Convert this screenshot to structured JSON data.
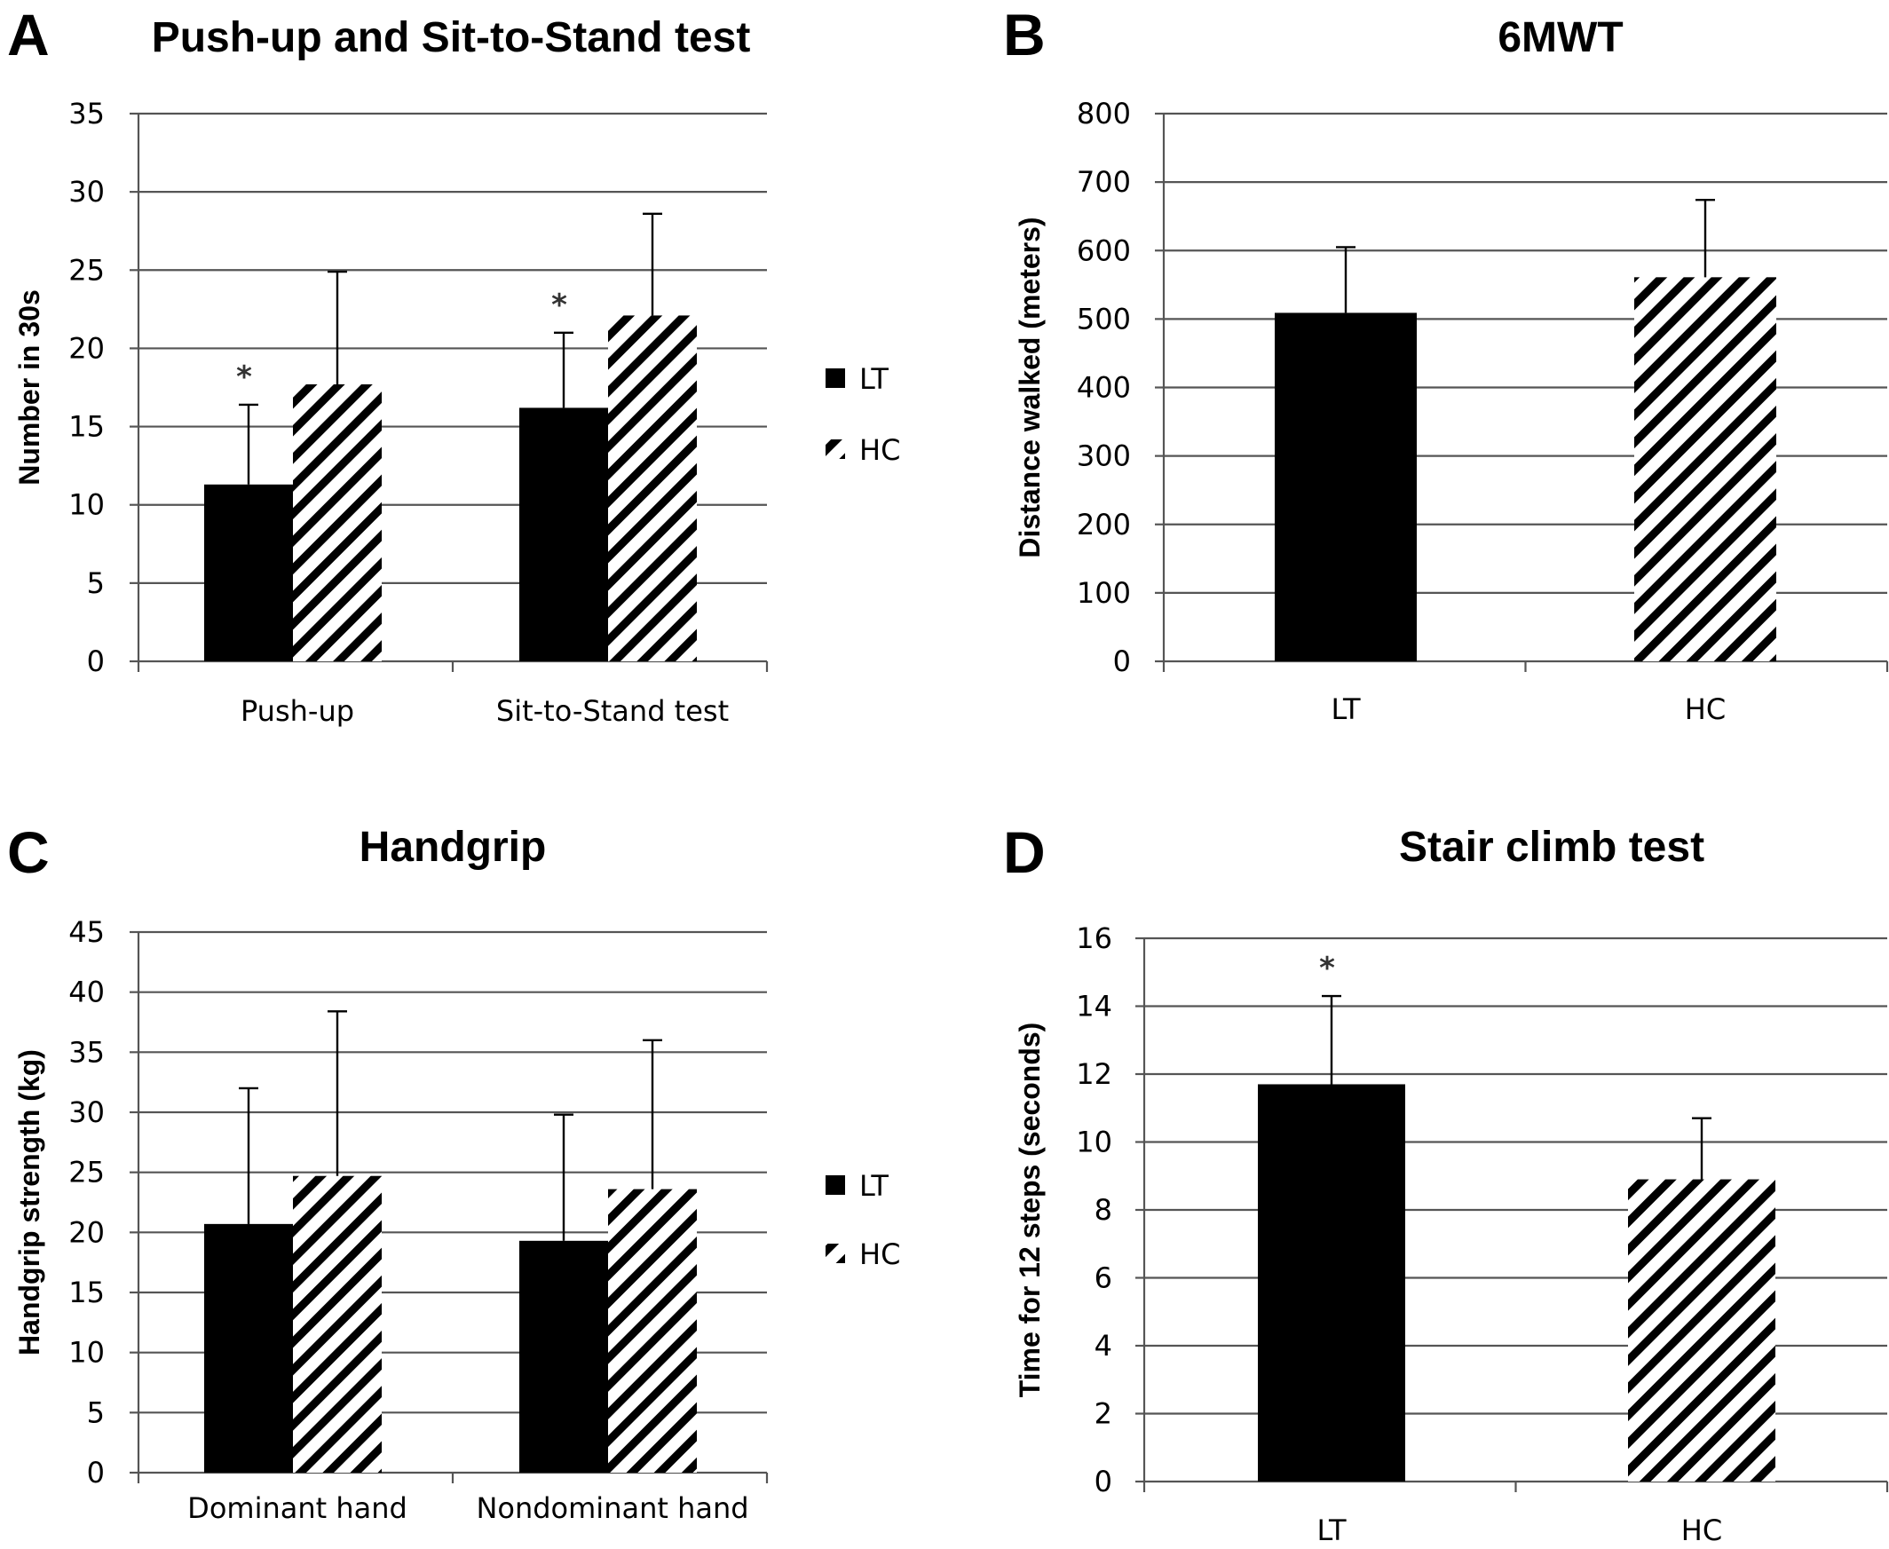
{
  "legend": {
    "lt": "LT",
    "hc": "HC"
  },
  "colors": {
    "lt_fill": "#000000",
    "hc_fill": "hatched black/white",
    "grid": "#555555"
  },
  "chart_data": [
    {
      "panel": "A",
      "type": "bar",
      "title": "Push-up and Sit-to-Stand test",
      "ylabel": "Number in 30s",
      "xlabel": "",
      "ylim": [
        0,
        35
      ],
      "yticks": [
        0,
        5,
        10,
        15,
        20,
        25,
        30,
        35
      ],
      "categories": [
        "Push-up",
        "Sit-to-Stand test"
      ],
      "series": [
        {
          "name": "LT",
          "values": [
            11.3,
            16.2
          ],
          "errors": [
            5.1,
            4.8
          ],
          "significant": [
            "*",
            "*"
          ]
        },
        {
          "name": "HC",
          "values": [
            17.7,
            22.1
          ],
          "errors": [
            7.2,
            6.5
          ],
          "significant": [
            "",
            ""
          ]
        }
      ],
      "legend_position": "right"
    },
    {
      "panel": "B",
      "type": "bar",
      "title": "6MWT",
      "ylabel": "Distance walked (meters)",
      "xlabel": "",
      "ylim": [
        0,
        800
      ],
      "yticks": [
        0,
        100,
        200,
        300,
        400,
        500,
        600,
        700,
        800
      ],
      "categories": [
        "LT",
        "HC"
      ],
      "series": [
        {
          "name": "",
          "values": [
            509,
            561
          ],
          "errors": [
            96,
            113
          ],
          "significant": [
            "",
            ""
          ],
          "fills": [
            "LT",
            "HC"
          ]
        }
      ]
    },
    {
      "panel": "C",
      "type": "bar",
      "title": "Handgrip",
      "ylabel": "Handgrip strength (kg)",
      "xlabel": "",
      "ylim": [
        0,
        45
      ],
      "yticks": [
        0,
        5,
        10,
        15,
        20,
        25,
        30,
        35,
        40,
        45
      ],
      "categories": [
        "Dominant hand",
        "Nondominant hand"
      ],
      "series": [
        {
          "name": "LT",
          "values": [
            20.7,
            19.3
          ],
          "errors": [
            11.3,
            10.5
          ],
          "significant": [
            "",
            ""
          ]
        },
        {
          "name": "HC",
          "values": [
            24.7,
            23.6
          ],
          "errors": [
            13.7,
            12.4
          ],
          "significant": [
            "",
            ""
          ]
        }
      ],
      "legend_position": "right"
    },
    {
      "panel": "D",
      "type": "bar",
      "title": "Stair climb test",
      "ylabel": "Time for 12 steps (seconds)",
      "xlabel": "",
      "ylim": [
        0,
        16
      ],
      "yticks": [
        0,
        2,
        4,
        6,
        8,
        10,
        12,
        14,
        16
      ],
      "categories": [
        "LT",
        "HC"
      ],
      "series": [
        {
          "name": "",
          "values": [
            11.7,
            8.9
          ],
          "errors": [
            2.6,
            1.8
          ],
          "significant": [
            "*",
            ""
          ],
          "fills": [
            "LT",
            "HC"
          ]
        }
      ]
    }
  ]
}
